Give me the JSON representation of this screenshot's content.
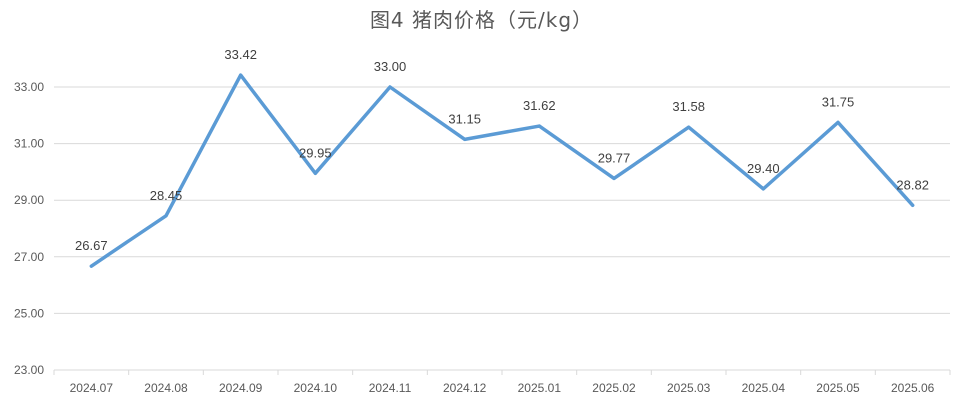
{
  "chart_data": {
    "type": "line",
    "title": "图4  猪肉价格（元/kg）",
    "categories": [
      "2024.07",
      "2024.08",
      "2024.09",
      "2024.10",
      "2024.11",
      "2024.12",
      "2025.01",
      "2025.02",
      "2025.03",
      "2025.04",
      "2025.05",
      "2025.06"
    ],
    "series": [
      {
        "values": [
          26.67,
          28.45,
          33.42,
          29.95,
          33.0,
          31.15,
          31.62,
          29.77,
          31.58,
          29.4,
          31.75,
          28.82
        ],
        "labels": [
          "26.67",
          "28.45",
          "33.42",
          "29.95",
          "33.00",
          "31.15",
          "31.62",
          "29.77",
          "31.58",
          "29.40",
          "31.75",
          "28.82"
        ]
      }
    ],
    "ylim": [
      23,
      33
    ],
    "yticks": [
      "23.00",
      "25.00",
      "27.00",
      "29.00",
      "31.00",
      "33.00"
    ],
    "grid": true,
    "colors": {
      "line": "#5b9bd5",
      "grid": "#d9d9d9",
      "text": "#595959",
      "label": "#404040"
    }
  }
}
